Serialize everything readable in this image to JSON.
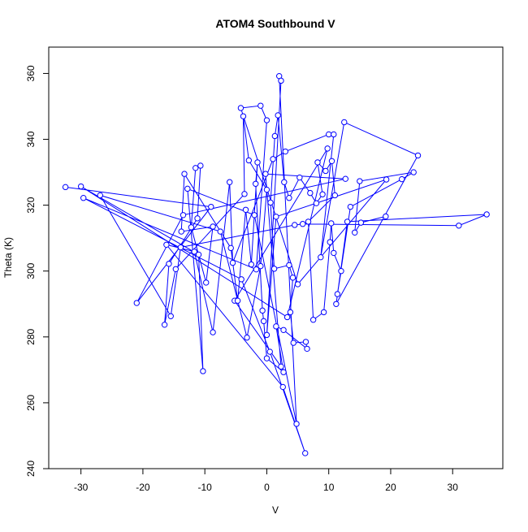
{
  "chart_data": {
    "type": "line",
    "markers": true,
    "title": "ATOM4 Southbound V",
    "xlabel": "V",
    "ylabel": "Theta (K)",
    "color": "#0000ff",
    "x": [
      -32.5,
      -9,
      -21,
      -13.5,
      12.7,
      -0.2,
      2.3,
      -5.2,
      9.8,
      3.3,
      -30,
      -11,
      -10.3,
      -12.8,
      -2,
      4.8,
      2,
      2.3,
      0,
      1.5,
      19.3,
      5,
      -4.2,
      -1,
      0,
      -1.7,
      -29.6,
      -4.1,
      0.5,
      6.2,
      2.6,
      -16.2,
      -11.7,
      -8.7,
      -6,
      -5.5,
      1,
      3,
      10,
      10.8,
      8.7,
      12.5,
      24.4,
      11.2,
      13,
      35.5,
      31,
      5.8,
      4.5,
      -13.9,
      -15.5,
      -26.9,
      -7.5,
      -3.2,
      -1,
      0,
      -2.9,
      -3.8,
      -3.6,
      -14.7,
      -16.5,
      -15.8,
      -11.2,
      -10.7,
      -11.5,
      -12.2,
      -9.8,
      -8.7,
      -13.8,
      -13.3,
      -5.8,
      -4.7,
      -3.4,
      -2.5,
      -1.5,
      -1.8,
      -0.7,
      -0.5,
      0,
      2.7,
      1.5,
      2.7,
      6.5,
      6.3,
      4.3,
      3.8,
      4.2,
      3.6,
      1.2,
      0.6,
      1.3,
      1.8,
      2.8,
      3.6,
      5.3,
      7,
      8,
      9,
      8.2,
      9.5,
      10.5,
      11,
      6.7,
      7.5,
      9.2,
      10.2,
      10.4,
      10.8,
      12,
      11.4,
      13.5,
      21.8,
      23.7,
      15,
      14.2,
      15.2,
      19.2
    ],
    "values": [
      325.5,
      319.5,
      290.3,
      317,
      328,
      329.5,
      271,
      291,
      337.2,
      286,
      325.7,
      305,
      269.6,
      325,
      317,
      253.6,
      359.2,
      357.8,
      280.6,
      316.5,
      327.8,
      296,
      349.5,
      350.2,
      345.8,
      300.5,
      322.2,
      297.5,
      275.5,
      244.7,
      264.8,
      308,
      305.9,
      281.4,
      327,
      302.5,
      334,
      336.3,
      341.5,
      341.5,
      304.2,
      345.2,
      335.1,
      290,
      315,
      317.2,
      313.8,
      314.3,
      314,
      307.2,
      286.3,
      323,
      312,
      279.8,
      301.5,
      324.7,
      333.6,
      347,
      323.4,
      300.6,
      283.7,
      302.2,
      316,
      332,
      331.3,
      313.3,
      296.5,
      313.5,
      312,
      329.5,
      307,
      291,
      318.6,
      302,
      333,
      326.5,
      288,
      284.8,
      273.5,
      269.3,
      283.2,
      282.1,
      276.4,
      278.5,
      278.2,
      287.5,
      298,
      301.8,
      300.7,
      320.8,
      341,
      347.3,
      327,
      322.2,
      328.4,
      323.7,
      320.6,
      323.3,
      333,
      330.4,
      333.4,
      323,
      315,
      285.2,
      287.5,
      308.8,
      314.5,
      305.5,
      300,
      293,
      319.5,
      327.9,
      330,
      327.3,
      311.7,
      314.7,
      316.6
    ],
    "xlim": [
      -35.2,
      38.1
    ],
    "ylim": [
      240,
      368
    ],
    "xticks": [
      -30,
      -20,
      -10,
      0,
      10,
      20,
      30
    ],
    "yticks": [
      240,
      260,
      280,
      300,
      320,
      340,
      360
    ]
  }
}
